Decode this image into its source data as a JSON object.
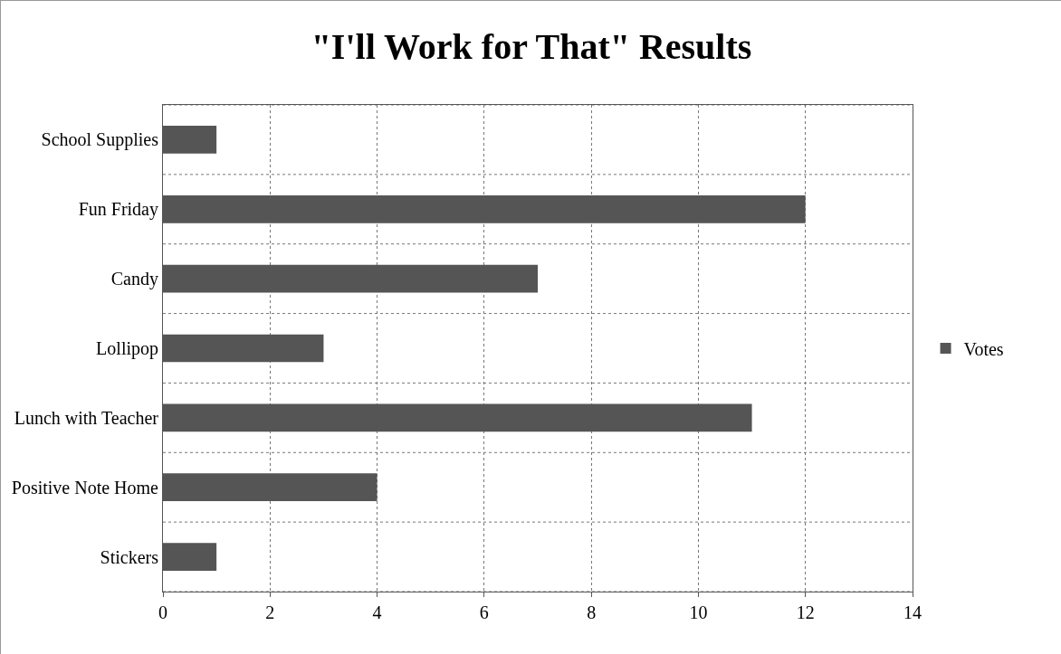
{
  "chart_data": {
    "type": "bar",
    "orientation": "horizontal",
    "title": "\"I'll Work for That\" Results",
    "categories": [
      "School Supplies",
      "Fun Friday",
      "Candy",
      "Lollipop",
      "Lunch with Teacher",
      "Positive Note Home",
      "Stickers"
    ],
    "series": [
      {
        "name": "Votes",
        "color": "#555555",
        "values": [
          1,
          12,
          7,
          3,
          11,
          4,
          1
        ]
      }
    ],
    "xlim": [
      0,
      14
    ],
    "xticks": [
      0,
      2,
      4,
      6,
      8,
      10,
      12,
      14
    ],
    "grid": true,
    "legend": "right"
  }
}
